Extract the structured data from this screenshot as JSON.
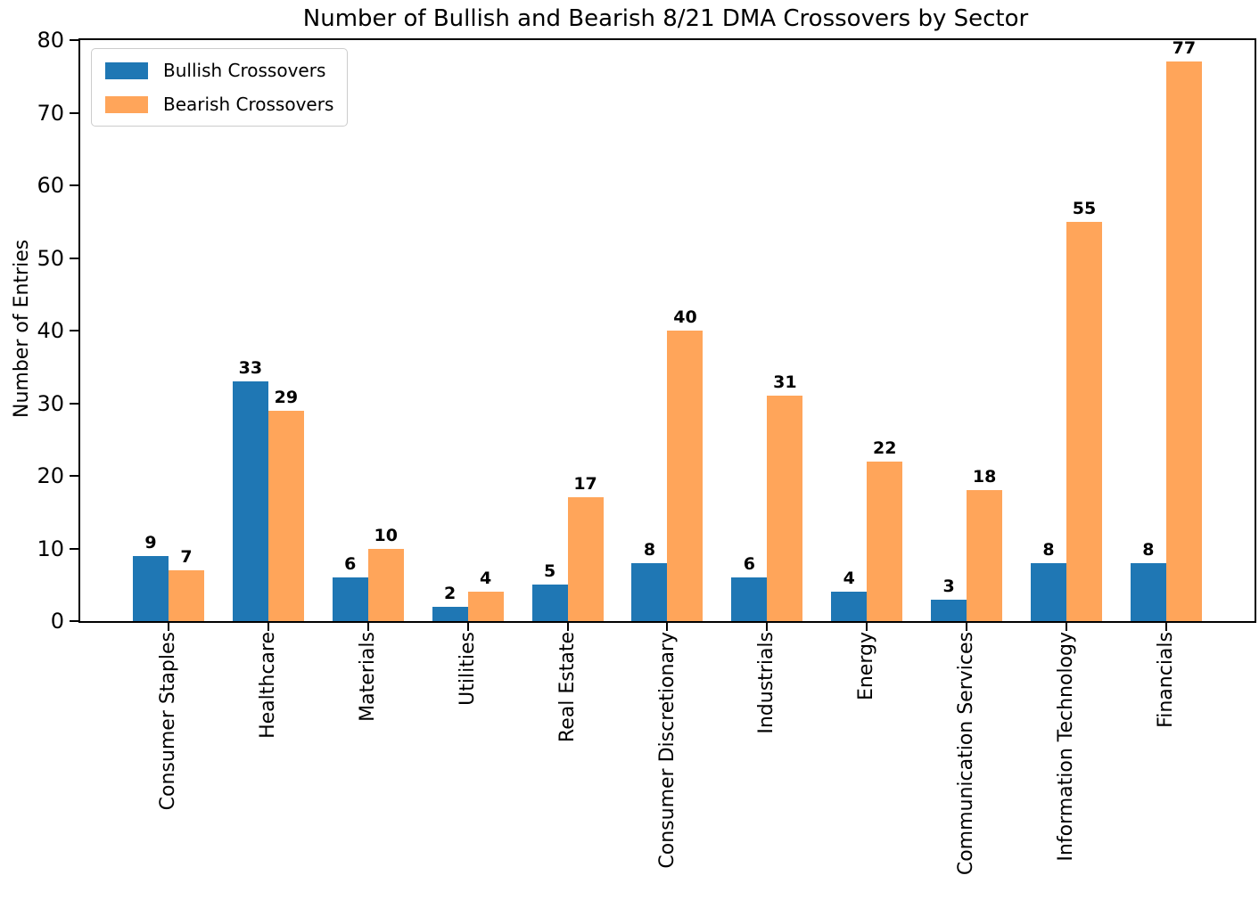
{
  "chart_data": {
    "type": "bar",
    "title": "Number of Bullish and Bearish 8/21 DMA Crossovers by Sector",
    "xlabel": "",
    "ylabel": "Number of Entries",
    "categories": [
      "Consumer Staples",
      "Healthcare",
      "Materials",
      "Utilities",
      "Real Estate",
      "Consumer Discretionary",
      "Industrials",
      "Energy",
      "Communication Services",
      "Information Technology",
      "Financials"
    ],
    "series": [
      {
        "name": "Bullish Crossovers",
        "color": "#1f77b4",
        "values": [
          9,
          33,
          6,
          2,
          5,
          8,
          6,
          4,
          3,
          8,
          8
        ]
      },
      {
        "name": "Bearish Crossovers",
        "color": "#ffa55a",
        "values": [
          7,
          29,
          10,
          4,
          17,
          40,
          31,
          22,
          18,
          55,
          77
        ]
      }
    ],
    "ylim": [
      0,
      80
    ],
    "yticks": [
      0,
      10,
      20,
      30,
      40,
      50,
      60,
      70,
      80
    ],
    "bar_value_labels": true,
    "x_tick_rotation": 90,
    "legend_position": "upper left",
    "grid": false,
    "axis_color": "#000000",
    "background_color": "#ffffff"
  }
}
